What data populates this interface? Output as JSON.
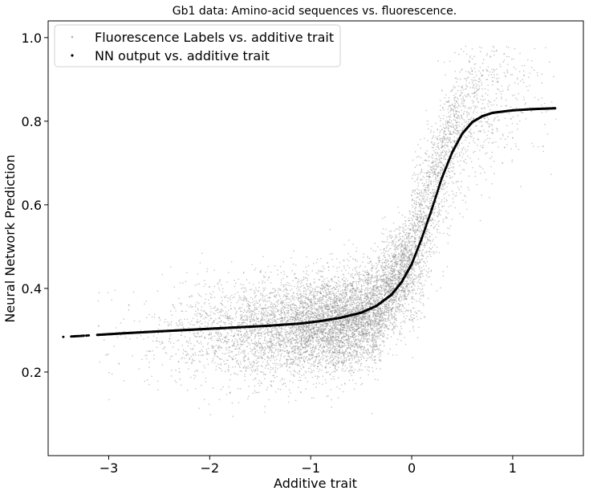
{
  "chart_data": {
    "type": "scatter",
    "title": "Gb1 data: Amino-acid sequences vs. fluorescence.",
    "xlabel": "Additive trait",
    "ylabel": "Neural Network Prediction",
    "xlim": [
      -3.6,
      1.7
    ],
    "ylim": [
      0.0,
      1.04
    ],
    "xticks": [
      -3,
      -2,
      -1,
      0,
      1
    ],
    "xtick_labels": [
      "−3",
      "−2",
      "−1",
      "0",
      "1"
    ],
    "yticks": [
      0.2,
      0.4,
      0.6,
      0.8,
      1.0
    ],
    "ytick_labels": [
      "0.2",
      "0.4",
      "0.6",
      "0.8",
      "1.0"
    ],
    "grid": false,
    "legend_position": "top-left",
    "series": [
      {
        "name": "Fluorescence Labels vs. additive trait",
        "color": "#808080",
        "marker": "small-dot",
        "description_points": [
          [
            -3.1,
            0.31
          ],
          [
            -2.9,
            0.22
          ],
          [
            -2.8,
            0.36
          ],
          [
            -2.6,
            0.25
          ],
          [
            -2.5,
            0.33
          ],
          [
            -2.3,
            0.2
          ],
          [
            -2.2,
            0.38
          ],
          [
            -2.0,
            0.29
          ],
          [
            -1.9,
            0.42
          ],
          [
            -1.8,
            0.15
          ],
          [
            -1.6,
            0.32
          ],
          [
            -1.5,
            0.44
          ],
          [
            -1.4,
            0.26
          ],
          [
            -1.2,
            0.36
          ],
          [
            -1.1,
            0.18
          ],
          [
            -1.0,
            0.3
          ],
          [
            -0.9,
            0.4
          ],
          [
            -0.8,
            0.28
          ],
          [
            -0.6,
            0.34
          ],
          [
            -0.5,
            0.22
          ],
          [
            -0.4,
            0.38
          ],
          [
            -0.3,
            0.45
          ],
          [
            -0.2,
            0.35
          ],
          [
            -0.1,
            0.5
          ],
          [
            0.0,
            0.48
          ],
          [
            0.1,
            0.6
          ],
          [
            0.2,
            0.7
          ],
          [
            0.3,
            0.78
          ],
          [
            0.4,
            0.84
          ],
          [
            0.5,
            0.88
          ],
          [
            0.6,
            0.92
          ],
          [
            0.7,
            0.86
          ],
          [
            0.8,
            0.78
          ],
          [
            0.9,
            0.7
          ],
          [
            1.0,
            0.76
          ],
          [
            1.1,
            0.82
          ],
          [
            1.3,
            0.74
          ]
        ]
      },
      {
        "name": "NN output vs. additive trait",
        "color": "#000000",
        "marker": "dot",
        "curve_points": [
          [
            -3.45,
            0.284
          ],
          [
            -3.3,
            0.286
          ],
          [
            -3.1,
            0.289
          ],
          [
            -2.9,
            0.292
          ],
          [
            -2.6,
            0.296
          ],
          [
            -2.2,
            0.301
          ],
          [
            -1.8,
            0.306
          ],
          [
            -1.4,
            0.311
          ],
          [
            -1.1,
            0.316
          ],
          [
            -0.9,
            0.322
          ],
          [
            -0.7,
            0.33
          ],
          [
            -0.5,
            0.342
          ],
          [
            -0.35,
            0.358
          ],
          [
            -0.2,
            0.385
          ],
          [
            -0.1,
            0.415
          ],
          [
            0.0,
            0.458
          ],
          [
            0.1,
            0.52
          ],
          [
            0.2,
            0.59
          ],
          [
            0.3,
            0.665
          ],
          [
            0.4,
            0.725
          ],
          [
            0.5,
            0.77
          ],
          [
            0.6,
            0.798
          ],
          [
            0.7,
            0.812
          ],
          [
            0.8,
            0.82
          ],
          [
            1.0,
            0.826
          ],
          [
            1.2,
            0.829
          ],
          [
            1.42,
            0.831
          ]
        ]
      }
    ]
  }
}
